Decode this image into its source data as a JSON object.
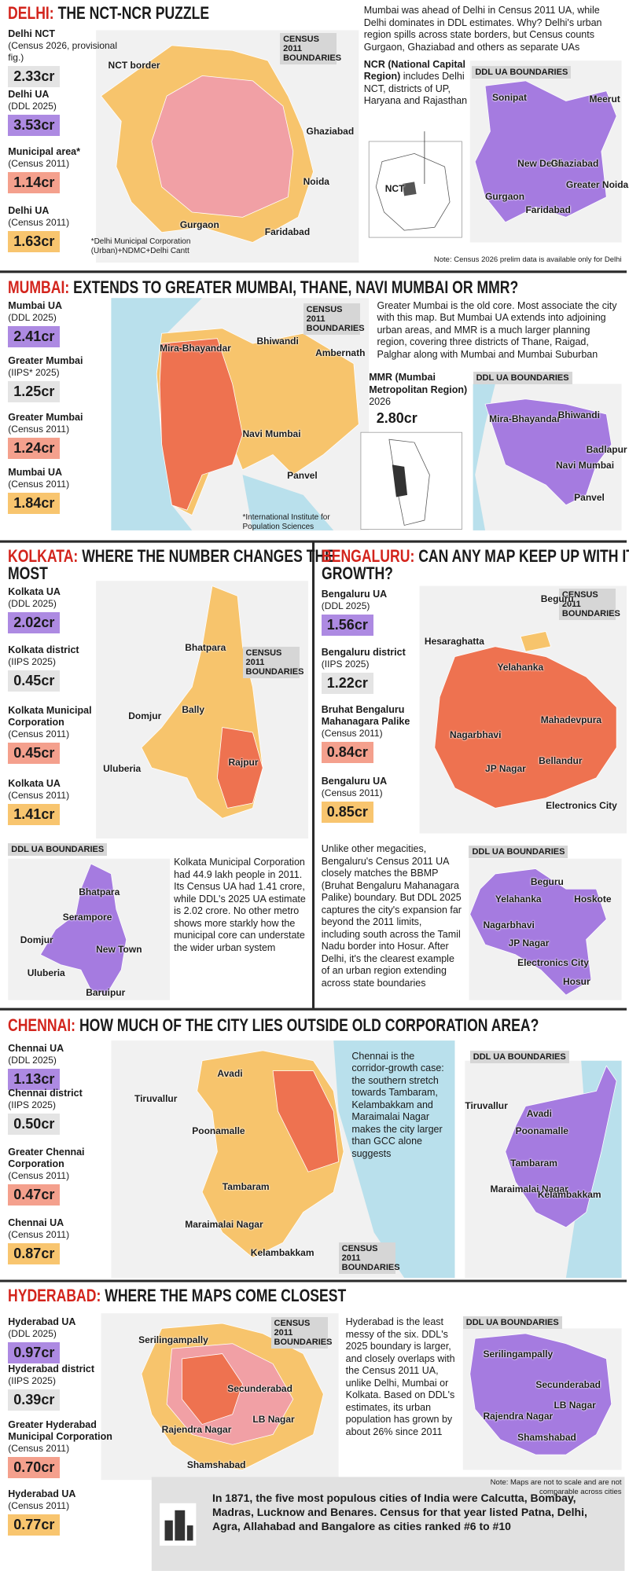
{
  "sections": [
    {
      "city": "DELHI:",
      "headline": "THE NCT-NCR PUZZLE",
      "stats": [
        {
          "name": "Delhi NCT",
          "source": "(Census 2026, provisional fig.)",
          "value": "2.33cr",
          "color": "#e4e4e4"
        },
        {
          "name": "Delhi UA",
          "source": "(DDL 2025)",
          "value": "3.53cr",
          "color": "#ad8ae2"
        },
        {
          "name": "Municipal area*",
          "source": "(Census 2011)",
          "value": "1.14cr",
          "color": "#f4a08d"
        },
        {
          "name": "Delhi UA",
          "source": "(Census 2011)",
          "value": "1.63cr",
          "color": "#f8c56f"
        }
      ],
      "census_label": "CENSUS 2011 BOUNDARIES",
      "census_places": [
        "NCT border",
        "Ghaziabad",
        "Noida",
        "Gurgaon",
        "Faridabad"
      ],
      "footnote": "*Delhi Municipal Corporation (Urban)+NDMC+Delhi Cantt",
      "text": "Mumbai was ahead of Delhi in Census 2011 UA, while Delhi dominates in DDL estimates. Why? Delhi's urban region spills across state borders, but Census counts Gurgaon, Ghaziabad and others as separate UAs",
      "ncr": {
        "title": "NCR (National Capital Region)",
        "body": "includes Delhi NCT, districts of UP, Haryana and Rajasthan"
      },
      "inset_label": "NCT",
      "ddl_label": "DDL UA BOUNDARIES",
      "ddl_places": [
        "Sonipat",
        "Meerut",
        "New Delhi",
        "Ghaziabad",
        "Greater Noida",
        "Gurgaon",
        "Faridabad"
      ],
      "note": "Note: Census 2026 prelim data is available only for Delhi"
    },
    {
      "city": "MUMBAI:",
      "headline": "EXTENDS TO GREATER MUMBAI, THANE, NAVI MUMBAI OR MMR?",
      "stats": [
        {
          "name": "Mumbai UA",
          "source": "(DDL 2025)",
          "value": "2.41cr",
          "color": "#ad8ae2"
        },
        {
          "name": "Greater Mumbai",
          "source": "(IIPS* 2025)",
          "value": "1.25cr",
          "color": "#e4e4e4"
        },
        {
          "name": "Greater Mumbai",
          "source": "(Census 2011)",
          "value": "1.24cr",
          "color": "#f4a08d"
        },
        {
          "name": "Mumbai UA",
          "source": "(Census 2011)",
          "value": "1.84cr",
          "color": "#f8c56f"
        }
      ],
      "census_label": "CENSUS 2011 BOUNDARIES",
      "census_places": [
        "Mira-Bhayandar",
        "Bhiwandi",
        "Ambernath",
        "Navi Mumbai",
        "Panvel"
      ],
      "footnote": "*International Institute for Population Sciences",
      "text": "Greater Mumbai is the old core. Most associate the city with this map. But Mumbai UA extends into adjoining urban areas, and MMR is a much larger planning region, covering three districts of Thane, Raigad, Palghar along with Mumbai and Mumbai Suburban",
      "mmr": {
        "title": "MMR (Mumbai Metropolitan Region)",
        "year": "2026",
        "value": "2.80cr"
      },
      "ddl_label": "DDL UA BOUNDARIES",
      "ddl_places": [
        "Mira-Bhayandar",
        "Bhiwandi",
        "Badlapur",
        "Navi Mumbai",
        "Panvel"
      ]
    },
    {
      "city": "KOLKATA:",
      "headline": "WHERE THE NUMBER CHANGES THE MOST",
      "stats": [
        {
          "name": "Kolkata UA",
          "source": "(DDL 2025)",
          "value": "2.02cr",
          "color": "#ad8ae2"
        },
        {
          "name": "Kolkata district",
          "source": "(IIPS 2025)",
          "value": "0.45cr",
          "color": "#e4e4e4"
        },
        {
          "name": "Kolkata Municipal Corporation",
          "source": "(Census 2011)",
          "value": "0.45cr",
          "color": "#f4a08d"
        },
        {
          "name": "Kolkata UA",
          "source": "(Census 2011)",
          "value": "1.41cr",
          "color": "#f8c56f"
        }
      ],
      "census_label": "CENSUS 2011 BOUNDARIES",
      "census_places": [
        "Bhatpara",
        "Bally",
        "Domjur",
        "Uluberia",
        "Rajpur"
      ],
      "text": "Kolkata Municipal Corporation had 44.9 lakh people in 2011. Its Census UA had 1.41 crore, while DDL's 2025 UA estimate is 2.02 crore. No other metro shows more starkly how the municipal core can understate the wider urban system",
      "ddl_label": "DDL UA BOUNDARIES",
      "ddl_places": [
        "Bhatpara",
        "Serampore",
        "Domjur",
        "New Town",
        "Uluberia",
        "Baruipur"
      ]
    },
    {
      "city": "BENGALURU:",
      "headline": "CAN ANY MAP KEEP UP WITH ITS GROWTH?",
      "stats": [
        {
          "name": "Bengaluru UA",
          "source": "(DDL 2025)",
          "value": "1.56cr",
          "color": "#ad8ae2"
        },
        {
          "name": "Bengaluru district",
          "source": "(IIPS 2025)",
          "value": "1.22cr",
          "color": "#e4e4e4"
        },
        {
          "name": "Bruhat Bengaluru Mahanagara Palike",
          "source": "(Census 2011)",
          "value": "0.84cr",
          "color": "#f4a08d"
        },
        {
          "name": "Bengaluru UA",
          "source": "(Census 2011)",
          "value": "0.85cr",
          "color": "#f8c56f"
        }
      ],
      "census_label": "CENSUS 2011 BOUNDARIES",
      "census_places": [
        "Beguru",
        "Hesaraghatta",
        "Yelahanka",
        "Mahadevpura",
        "Nagarbhavi",
        "Bellandur",
        "JP Nagar",
        "Electronics City"
      ],
      "text": "Unlike other megacities, Bengaluru's Census 2011 UA closely matches the BBMP (Bruhat Bengaluru Mahanagara Palike) boundary. But DDL 2025 captures the city's expansion far beyond the 2011 limits, including south across the Tamil Nadu border into Hosur. After Delhi, it's the clearest example of an urban region extending across state boundaries",
      "ddl_label": "DDL UA BOUNDARIES",
      "ddl_places": [
        "Beguru",
        "Yelahanka",
        "Hoskote",
        "Nagarbhavi",
        "JP Nagar",
        "Electronics City",
        "Hosur"
      ]
    },
    {
      "city": "CHENNAI:",
      "headline": "HOW MUCH OF THE CITY LIES OUTSIDE OLD CORPORATION AREA?",
      "stats": [
        {
          "name": "Chennai UA",
          "source": "(DDL 2025)",
          "value": "1.13cr",
          "color": "#ad8ae2"
        },
        {
          "name": "Chennai district",
          "source": "(IIPS 2025)",
          "value": "0.50cr",
          "color": "#e4e4e4"
        },
        {
          "name": "Greater Chennai Corporation",
          "source": "(Census 2011)",
          "value": "0.47cr",
          "color": "#f4a08d"
        },
        {
          "name": "Chennai UA",
          "source": "(Census 2011)",
          "value": "0.87cr",
          "color": "#f8c56f"
        }
      ],
      "census_label": "CENSUS 2011 BOUNDARIES",
      "census_places": [
        "Tiruvallur",
        "Avadi",
        "Poonamalle",
        "Tambaram",
        "Maraimalai Nagar",
        "Kelambakkam"
      ],
      "text": "Chennai is the corridor-growth case: the southern stretch towards Tambaram, Kelambakkam and Maraimalai Nagar makes the city larger than GCC alone suggests",
      "ddl_label": "DDL UA BOUNDARIES",
      "ddl_places": [
        "Tiruvallur",
        "Avadi",
        "Poonamalle",
        "Tambaram",
        "Maraimalai Nagar",
        "Kelambakkam"
      ]
    },
    {
      "city": "HYDERABAD:",
      "headline": "WHERE THE MAPS COME CLOSEST",
      "stats": [
        {
          "name": "Hyderabad UA",
          "source": "(DDL 2025)",
          "value": "0.97cr",
          "color": "#ad8ae2"
        },
        {
          "name": "Hyderabad district",
          "source": "(IIPS 2025)",
          "value": "0.39cr",
          "color": "#e4e4e4"
        },
        {
          "name": "Greater Hyderabad Municipal Corporation",
          "source": "(Census 2011)",
          "value": "0.70cr",
          "color": "#f4a08d"
        },
        {
          "name": "Hyderabad UA",
          "source": "(Census 2011)",
          "value": "0.77cr",
          "color": "#f8c56f"
        }
      ],
      "census_label": "CENSUS 2011 BOUNDARIES",
      "census_places": [
        "Serilingampally",
        "Secunderabad",
        "LB Nagar",
        "Rajendra Nagar",
        "Shamshabad"
      ],
      "text": "Hyderabad is the least messy of the six. DDL's 2025 boundary is larger, and closely overlaps with the Census 2011 UA, unlike Delhi, Mumbai or Kolkata. Based on DDL's estimates, its urban population has grown by about 26% since 2011",
      "ddl_label": "DDL UA BOUNDARIES",
      "ddl_places": [
        "Serilingampally",
        "Secunderabad",
        "Rajendra Nagar",
        "LB Nagar",
        "Shamshabad"
      ],
      "note": "Note: Maps are not to scale and are not comparable across cities"
    }
  ],
  "footer": "In 1871, the five most populous cities of India were Calcutta, Bombay, Madras, Lucknow and Benares. Census for that year listed Patna, Delhi, Agra, Allahabad and Bangalore as cities ranked #6 to #10"
}
